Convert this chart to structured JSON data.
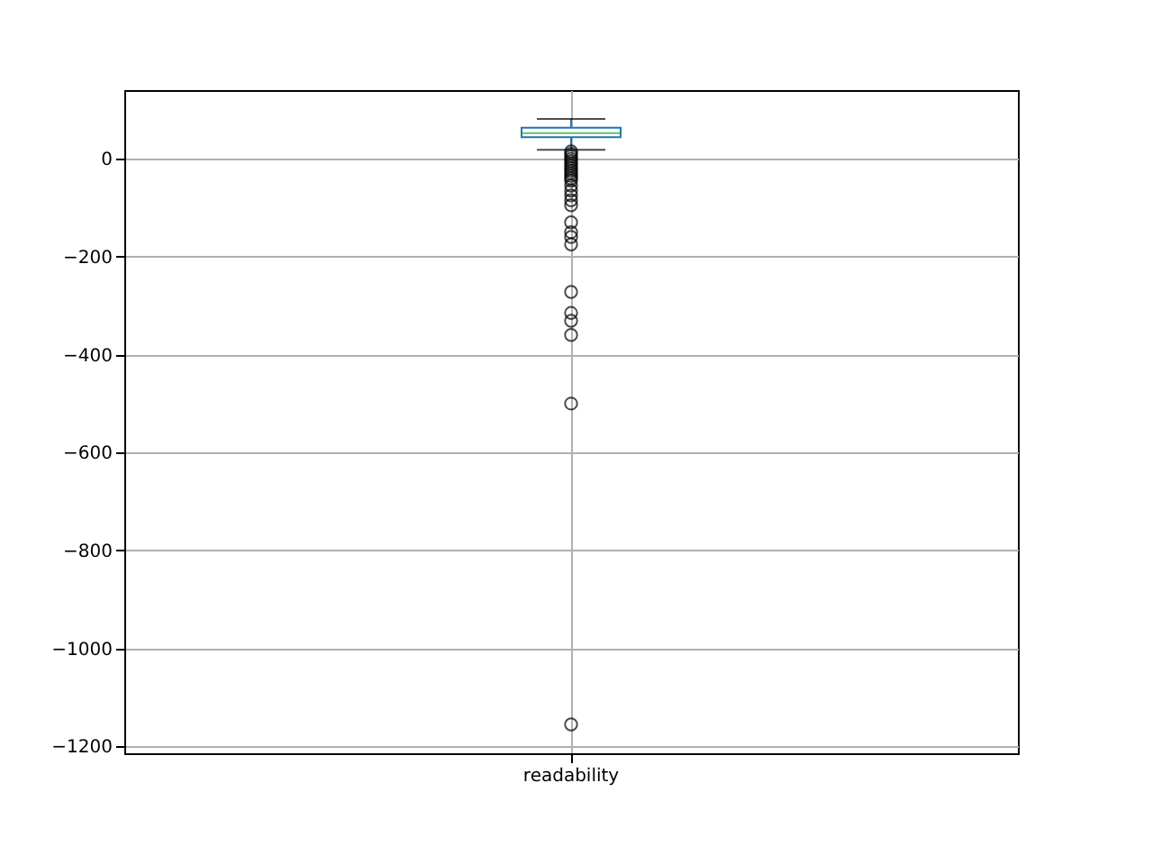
{
  "chart_data": {
    "type": "box",
    "categories": [
      "readability"
    ],
    "boxes": [
      {
        "low": 18,
        "q1": 44,
        "median": 52,
        "q3": 63,
        "high": 81,
        "outliers": [
          15,
          10,
          5,
          0,
          -5,
          -10,
          -15,
          -20,
          -25,
          -30,
          -35,
          -40,
          -45,
          -55,
          -65,
          -75,
          -85,
          -95,
          -130,
          -150,
          -160,
          -175,
          -272,
          -315,
          -331,
          -360,
          -500,
          -1155
        ]
      }
    ],
    "color": "#1f77b4",
    "ylim": [
      -1214,
      140
    ],
    "yticks": [
      -1200,
      -1000,
      -800,
      -600,
      -400,
      -200,
      0
    ],
    "grid": true
  }
}
